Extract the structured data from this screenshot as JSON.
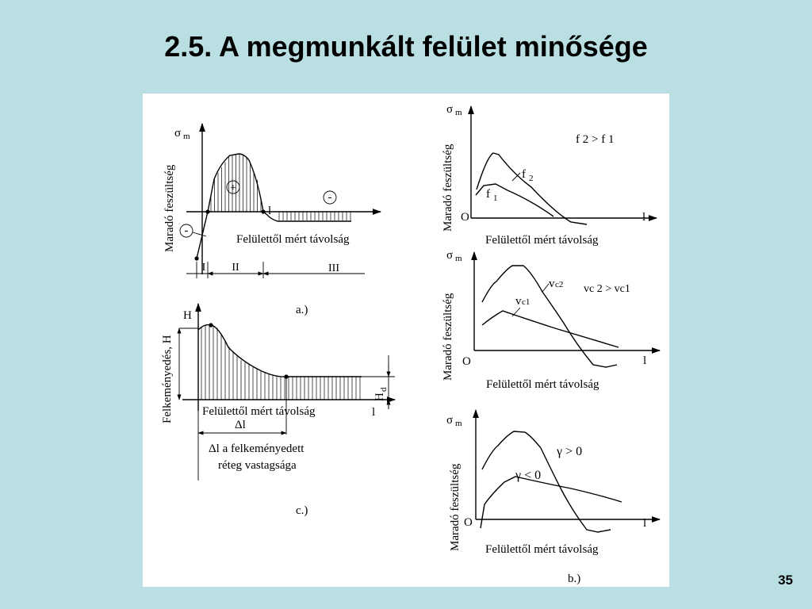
{
  "slide": {
    "title": "2.5. A megmunkált felület minősége",
    "page_number": "35"
  },
  "diagram_a": {
    "y_label": "Maradó feszültség",
    "y_symbol": "σ",
    "y_symbol_sub": "m",
    "x_label": "Felülettől mért távolság",
    "x_symbol": "l",
    "plus_sign": "+",
    "minus_sign_left": "-",
    "minus_sign_right": "-",
    "zone_1": "I",
    "zone_2": "II",
    "zone_3": "III",
    "caption": "a.)"
  },
  "diagram_c": {
    "y_label": "Felkeményedés, H",
    "h_label": "H",
    "hd_label": "H",
    "hd_sub": "d",
    "x_label": "Felülettől mért távolság",
    "x_symbol": "l",
    "delta_label": "Δl",
    "note_line1": "Δl a felkeményedett",
    "note_line2": "réteg vastagsága",
    "caption": "c.)"
  },
  "diagram_b": {
    "caption": "b.)",
    "panels": [
      {
        "y_label": "Maradó feszültség",
        "y_symbol": "σ",
        "y_symbol_sub": "m",
        "origin": "O",
        "x_symbol": "l",
        "x_label": "Felülettől mért távolság",
        "curve_upper": "f",
        "curve_upper_sub": "2",
        "curve_lower": "f",
        "curve_lower_sub": "1",
        "relation": "f 2 > f 1"
      },
      {
        "y_label": "Maradó feszültség",
        "y_symbol": "σ",
        "y_symbol_sub": "m",
        "origin": "O",
        "x_symbol": "l",
        "x_label": "Felülettől mért távolság",
        "curve_upper": "v",
        "curve_upper_sub": "c2",
        "curve_lower": "v",
        "curve_lower_sub": "c1",
        "relation": "vc 2 > vc1"
      },
      {
        "y_label": "Maradó feszültség",
        "y_symbol": "σ",
        "y_symbol_sub": "m",
        "origin": "O",
        "x_symbol": "l",
        "x_label": "Felülettől mért távolság",
        "curve_upper": "γ > 0",
        "curve_lower": "γ < 0"
      }
    ]
  }
}
